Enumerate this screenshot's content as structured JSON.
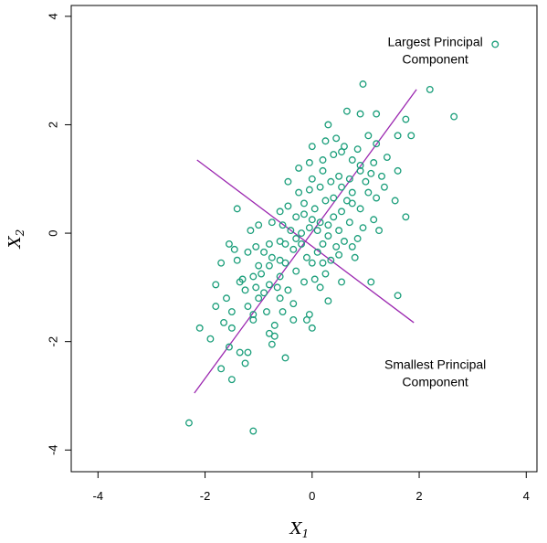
{
  "chart_data": {
    "type": "scatter",
    "title": "",
    "xlabel": "X",
    "xlabel_sub": "1",
    "ylabel": "X",
    "ylabel_sub": "2",
    "xlim": [
      -4.5,
      4.2
    ],
    "ylim": [
      -4.4,
      4.2
    ],
    "xticks": [
      -4,
      -2,
      0,
      2,
      4
    ],
    "yticks": [
      -4,
      -2,
      0,
      2,
      4
    ],
    "xtick_labels": [
      "-4",
      "-2",
      "0",
      "2",
      "4"
    ],
    "ytick_labels": [
      "-4",
      "-2",
      "0",
      "2",
      "4"
    ],
    "grid": false,
    "point_color": "#1a9e7a",
    "line_color": "#9b27b0",
    "annotations": [
      {
        "line1": "Largest Principal",
        "line2": "Component",
        "x": 2.3,
        "y": 3.45
      },
      {
        "line1": "Smallest Principal",
        "line2": "Component",
        "x": 2.3,
        "y": -2.5
      }
    ],
    "legend_marker": {
      "x": 3.42,
      "y": 3.45
    },
    "principal_lines": [
      {
        "name": "Largest Principal Component",
        "x1": -2.2,
        "y1": -2.95,
        "x2": 1.95,
        "y2": 2.65
      },
      {
        "name": "Smallest Principal Component",
        "x1": -2.15,
        "y1": 1.35,
        "x2": 1.9,
        "y2": -1.65
      }
    ],
    "points": [
      [
        -2.3,
        -3.5
      ],
      [
        -1.1,
        -3.65
      ],
      [
        -1.5,
        -2.7
      ],
      [
        -1.7,
        -2.5
      ],
      [
        -1.2,
        -2.2
      ],
      [
        -1.35,
        -2.2
      ],
      [
        -1.25,
        -2.4
      ],
      [
        -0.75,
        -2.05
      ],
      [
        -0.5,
        -2.3
      ],
      [
        -1.55,
        -2.1
      ],
      [
        -1.9,
        -1.95
      ],
      [
        -2.1,
        -1.75
      ],
      [
        -1.5,
        -1.75
      ],
      [
        -1.65,
        -1.65
      ],
      [
        -1.1,
        -1.6
      ],
      [
        -1.1,
        -1.5
      ],
      [
        -1.5,
        -1.45
      ],
      [
        -1.2,
        -1.35
      ],
      [
        -1.8,
        -1.35
      ],
      [
        -0.7,
        -1.9
      ],
      [
        -0.8,
        -1.85
      ],
      [
        -0.7,
        -1.7
      ],
      [
        -0.55,
        -1.45
      ],
      [
        -0.35,
        -1.6
      ],
      [
        -0.85,
        -1.45
      ],
      [
        -0.6,
        -1.2
      ],
      [
        -0.9,
        -1.1
      ],
      [
        -1.05,
        -1.0
      ],
      [
        -1.25,
        -1.05
      ],
      [
        -1.6,
        -1.2
      ],
      [
        -1.35,
        -0.9
      ],
      [
        -1.1,
        -0.8
      ],
      [
        -0.95,
        -0.75
      ],
      [
        -0.8,
        -0.95
      ],
      [
        -0.6,
        -0.8
      ],
      [
        -0.45,
        -1.05
      ],
      [
        -1.8,
        -0.95
      ],
      [
        -1.4,
        -0.5
      ],
      [
        -1.2,
        -0.35
      ],
      [
        -1.0,
        -0.6
      ],
      [
        -1.05,
        -0.25
      ],
      [
        -0.75,
        -0.45
      ],
      [
        -0.5,
        -0.55
      ],
      [
        -0.3,
        -0.7
      ],
      [
        -0.15,
        -0.9
      ],
      [
        0.05,
        -0.85
      ],
      [
        -0.05,
        -1.5
      ],
      [
        0.0,
        -1.75
      ],
      [
        -0.1,
        -1.6
      ],
      [
        0.15,
        -1.0
      ],
      [
        0.3,
        -1.25
      ],
      [
        0.25,
        -0.75
      ],
      [
        0.55,
        -0.9
      ],
      [
        0.8,
        -0.45
      ],
      [
        1.1,
        -0.9
      ],
      [
        1.6,
        -1.15
      ],
      [
        -1.7,
        -0.55
      ],
      [
        -1.55,
        -0.2
      ],
      [
        -1.45,
        -0.3
      ],
      [
        -1.15,
        0.05
      ],
      [
        -1.0,
        0.15
      ],
      [
        -0.8,
        -0.2
      ],
      [
        -0.6,
        -0.15
      ],
      [
        -0.35,
        -0.3
      ],
      [
        -0.1,
        -0.45
      ],
      [
        0.0,
        -0.55
      ],
      [
        0.1,
        -0.35
      ],
      [
        0.2,
        -0.2
      ],
      [
        0.3,
        -0.05
      ],
      [
        0.45,
        -0.25
      ],
      [
        0.6,
        -0.15
      ],
      [
        0.75,
        -0.25
      ],
      [
        0.35,
        -0.5
      ],
      [
        0.5,
        -0.4
      ],
      [
        -1.4,
        0.45
      ],
      [
        -0.75,
        0.2
      ],
      [
        -0.55,
        0.15
      ],
      [
        -0.4,
        0.05
      ],
      [
        -0.2,
        0.0
      ],
      [
        -0.05,
        0.1
      ],
      [
        0.15,
        0.2
      ],
      [
        0.3,
        0.15
      ],
      [
        0.5,
        0.05
      ],
      [
        0.7,
        0.2
      ],
      [
        0.95,
        0.1
      ],
      [
        1.15,
        0.25
      ],
      [
        1.25,
        0.05
      ],
      [
        -0.6,
        0.4
      ],
      [
        -0.45,
        0.5
      ],
      [
        -0.3,
        0.3
      ],
      [
        -0.15,
        0.35
      ],
      [
        0.05,
        0.45
      ],
      [
        0.25,
        0.6
      ],
      [
        0.4,
        0.65
      ],
      [
        0.55,
        0.4
      ],
      [
        0.75,
        0.55
      ],
      [
        0.9,
        0.45
      ],
      [
        1.05,
        0.75
      ],
      [
        1.2,
        0.65
      ],
      [
        1.55,
        0.6
      ],
      [
        1.75,
        0.3
      ],
      [
        -0.25,
        0.75
      ],
      [
        -0.05,
        0.8
      ],
      [
        0.15,
        0.85
      ],
      [
        0.35,
        0.95
      ],
      [
        0.5,
        1.05
      ],
      [
        0.7,
        1.0
      ],
      [
        0.9,
        1.15
      ],
      [
        1.1,
        1.1
      ],
      [
        1.3,
        1.05
      ],
      [
        1.6,
        1.15
      ],
      [
        -0.45,
        0.95
      ],
      [
        -0.25,
        1.2
      ],
      [
        -0.05,
        1.3
      ],
      [
        0.2,
        1.35
      ],
      [
        0.4,
        1.45
      ],
      [
        0.55,
        1.5
      ],
      [
        0.75,
        1.35
      ],
      [
        0.9,
        1.25
      ],
      [
        1.15,
        1.3
      ],
      [
        1.4,
        1.4
      ],
      [
        0.0,
        1.6
      ],
      [
        0.25,
        1.7
      ],
      [
        0.45,
        1.75
      ],
      [
        0.6,
        1.6
      ],
      [
        0.85,
        1.55
      ],
      [
        1.05,
        1.8
      ],
      [
        1.2,
        1.65
      ],
      [
        1.6,
        1.8
      ],
      [
        1.85,
        1.8
      ],
      [
        0.3,
        2.0
      ],
      [
        0.65,
        2.25
      ],
      [
        0.9,
        2.2
      ],
      [
        1.2,
        2.2
      ],
      [
        1.75,
        2.1
      ],
      [
        2.2,
        2.65
      ],
      [
        2.65,
        2.15
      ],
      [
        0.95,
        2.75
      ],
      [
        -0.3,
        -0.1
      ],
      [
        0.1,
        0.05
      ],
      [
        -0.9,
        -0.35
      ],
      [
        -1.3,
        -0.85
      ],
      [
        0.0,
        1.0
      ],
      [
        -0.2,
        -0.2
      ],
      [
        0.2,
        -0.55
      ],
      [
        -0.65,
        -1.0
      ],
      [
        0.65,
        0.6
      ],
      [
        1.0,
        0.95
      ],
      [
        -0.5,
        -0.2
      ],
      [
        0.4,
        0.3
      ],
      [
        -0.8,
        -0.6
      ],
      [
        1.35,
        0.85
      ],
      [
        -0.15,
        0.55
      ],
      [
        0.55,
        0.85
      ],
      [
        -1.0,
        -1.2
      ],
      [
        0.85,
        -0.1
      ],
      [
        -0.35,
        -1.3
      ],
      [
        0.0,
        0.25
      ],
      [
        -0.6,
        -0.5
      ],
      [
        0.2,
        1.15
      ],
      [
        0.75,
        0.75
      ]
    ]
  }
}
